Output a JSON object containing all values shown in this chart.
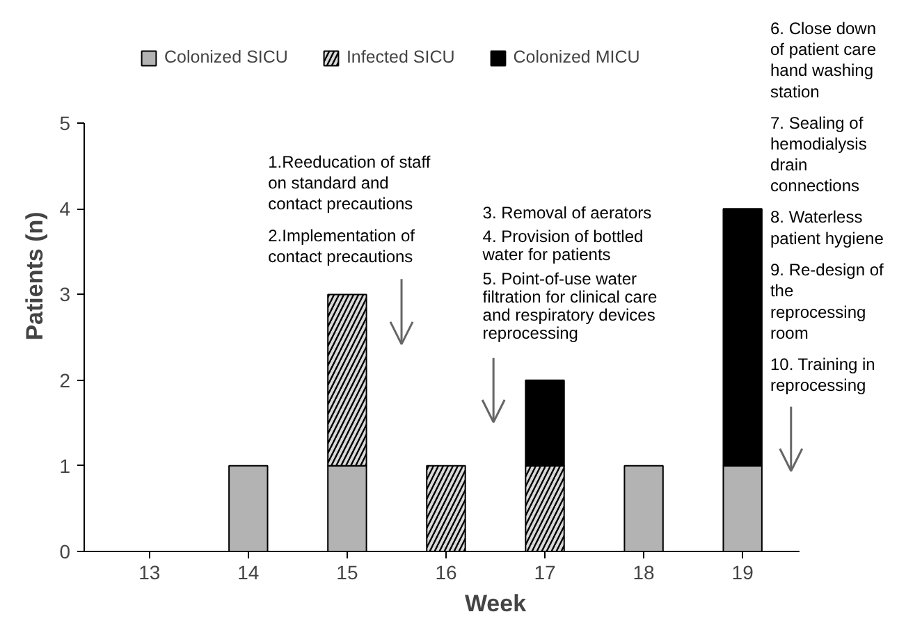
{
  "chart_data": {
    "type": "bar",
    "stacked": true,
    "xlabel": "Week",
    "ylabel": "Patients (n)",
    "categories": [
      "13",
      "14",
      "15",
      "16",
      "17",
      "18",
      "19"
    ],
    "series": [
      {
        "name": "Colonized SICU",
        "color": "#b3b3b3",
        "values": [
          0,
          1,
          1,
          0,
          0,
          1,
          1
        ]
      },
      {
        "name": "Infected SICU",
        "color": "#d9d9d9",
        "values": [
          0,
          0,
          2,
          1,
          1,
          0,
          0
        ]
      },
      {
        "name": "Colonized MICU",
        "color": "#000000",
        "values": [
          0,
          0,
          0,
          0,
          1,
          0,
          3
        ]
      }
    ],
    "ylim": [
      0,
      5
    ],
    "yticks": [
      0,
      1,
      2,
      3,
      4,
      5
    ],
    "legend": "top",
    "annotations": [
      "1.Reeducation of staff on standard and contact precautions",
      "2.Implementation of contact precautions",
      "3. Removal of aerators",
      "4. Provision of bottled water for patients",
      "5. Point-of-use water filtration for clinical care and respiratory devices reprocessing",
      "6. Close down of patient care hand washing station",
      "7. Sealing of hemodialysis drain connections",
      "8. Waterless patient hygiene",
      "9. Re-design of the reprocessing room",
      "10. Training in reprocessing"
    ]
  }
}
